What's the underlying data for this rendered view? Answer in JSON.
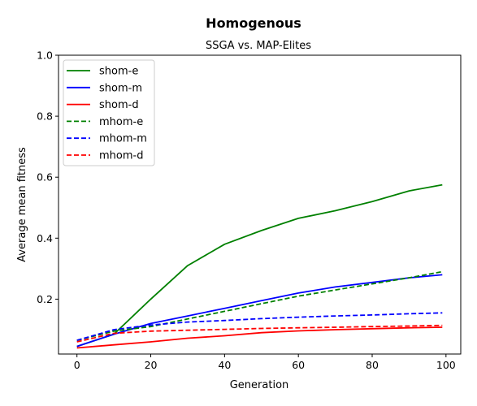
{
  "chart_data": {
    "type": "line",
    "title": "Homogenous",
    "subtitle": "SSGA vs. MAP-Elites",
    "xlabel": "Generation",
    "ylabel": "Average mean fitness",
    "xlim": [
      -5,
      104
    ],
    "ylim": [
      0.02,
      1.0
    ],
    "x_ticks": [
      0,
      20,
      40,
      60,
      80,
      100
    ],
    "y_ticks": [
      0.2,
      0.4,
      0.6,
      0.8,
      1.0
    ],
    "x_tick_labels": [
      "0",
      "20",
      "40",
      "60",
      "80",
      "100"
    ],
    "y_tick_labels": [
      "0.2",
      "0.4",
      "0.6",
      "0.8",
      "1.0"
    ],
    "grid": false,
    "legend_position": "top-left",
    "x": [
      0,
      10,
      20,
      30,
      40,
      50,
      60,
      70,
      80,
      90,
      99
    ],
    "series": [
      {
        "name": "shom-e",
        "color": "#008000",
        "dash": "solid",
        "values": [
          0.045,
          0.085,
          0.2,
          0.31,
          0.38,
          0.425,
          0.465,
          0.49,
          0.52,
          0.555,
          0.575
        ]
      },
      {
        "name": "shom-m",
        "color": "#0000ff",
        "dash": "solid",
        "values": [
          0.045,
          0.085,
          0.12,
          0.145,
          0.17,
          0.195,
          0.22,
          0.24,
          0.255,
          0.27,
          0.28
        ]
      },
      {
        "name": "shom-d",
        "color": "#ff0000",
        "dash": "solid",
        "values": [
          0.04,
          0.05,
          0.06,
          0.072,
          0.08,
          0.09,
          0.096,
          0.1,
          0.103,
          0.106,
          0.108
        ]
      },
      {
        "name": "mhom-e",
        "color": "#008000",
        "dash": "dashed",
        "values": [
          0.065,
          0.095,
          0.11,
          0.135,
          0.16,
          0.185,
          0.21,
          0.23,
          0.25,
          0.27,
          0.29
        ]
      },
      {
        "name": "mhom-m",
        "color": "#0000ff",
        "dash": "dashed",
        "values": [
          0.065,
          0.1,
          0.115,
          0.125,
          0.13,
          0.136,
          0.141,
          0.145,
          0.148,
          0.152,
          0.155
        ]
      },
      {
        "name": "mhom-d",
        "color": "#ff0000",
        "dash": "dashed",
        "values": [
          0.06,
          0.088,
          0.095,
          0.098,
          0.101,
          0.104,
          0.106,
          0.108,
          0.11,
          0.112,
          0.114
        ]
      }
    ]
  }
}
